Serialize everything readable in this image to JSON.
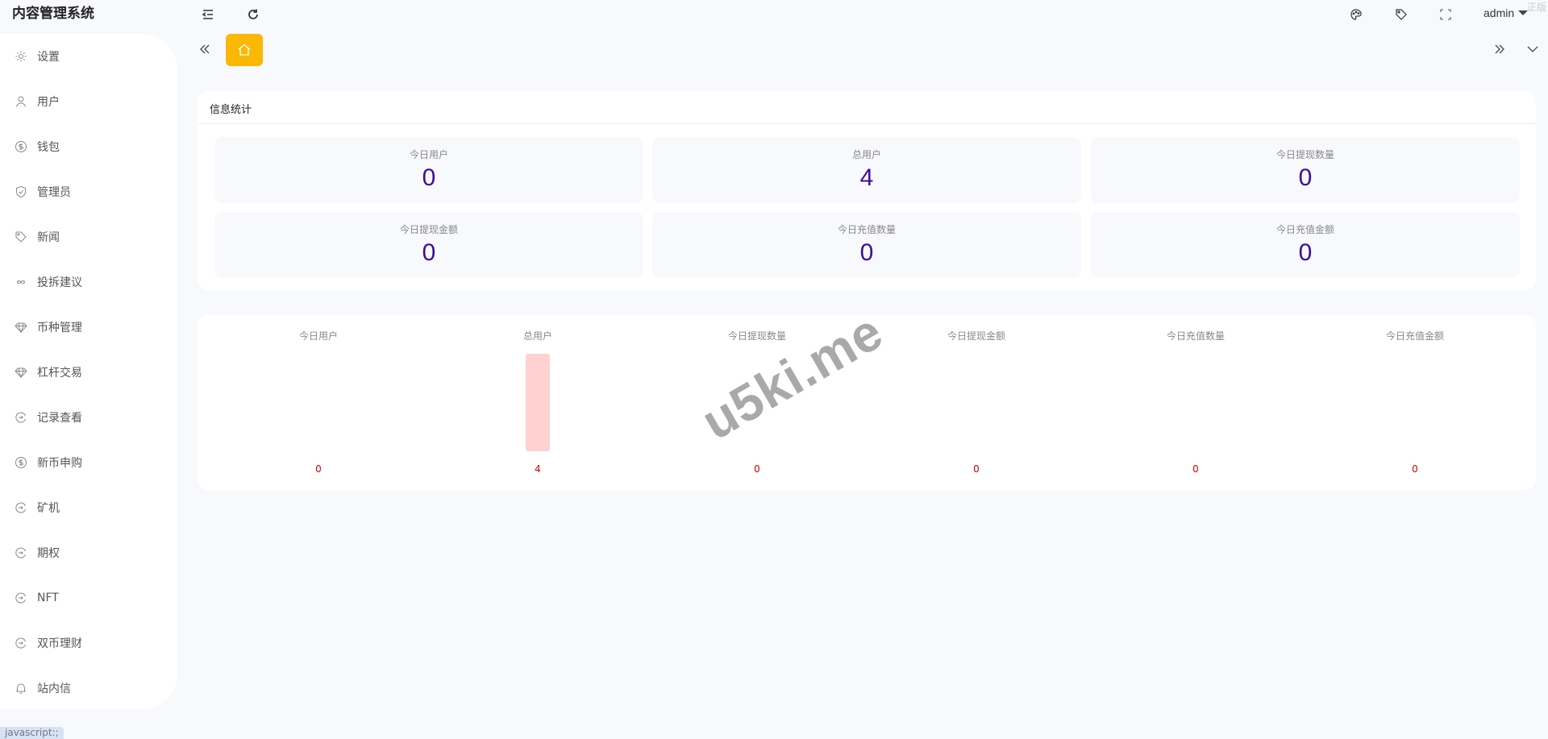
{
  "header": {
    "title": "内容管理系统",
    "user": "admin",
    "corner_text": "正版",
    "icons": [
      "menu-fold-icon",
      "refresh-icon",
      "palette-icon",
      "tag-icon",
      "fullscreen-icon"
    ]
  },
  "sidebar": {
    "items": [
      {
        "label": "设置",
        "icon": "gear-icon"
      },
      {
        "label": "用户",
        "icon": "user-icon"
      },
      {
        "label": "钱包",
        "icon": "dollar-icon"
      },
      {
        "label": "管理员",
        "icon": "shield-icon"
      },
      {
        "label": "新闻",
        "icon": "tag-icon"
      },
      {
        "label": "投拆建议",
        "icon": "infinity-icon"
      },
      {
        "label": "币种管理",
        "icon": "diamond-icon"
      },
      {
        "label": "杠杆交易",
        "icon": "diamond-icon"
      },
      {
        "label": "记录查看",
        "icon": "circle-arrow-icon"
      },
      {
        "label": "新币申购",
        "icon": "dollar-icon"
      },
      {
        "label": "矿机",
        "icon": "circle-arrow-icon"
      },
      {
        "label": "期权",
        "icon": "circle-arrow-icon"
      },
      {
        "label": "NFT",
        "icon": "circle-arrow-icon"
      },
      {
        "label": "双币理财",
        "icon": "circle-arrow-icon"
      },
      {
        "label": "站内信",
        "icon": "bell-icon"
      }
    ]
  },
  "tabs": {
    "home_color": "#fbb703"
  },
  "stats": {
    "title": "信息统计",
    "cards": [
      {
        "label": "今日用户",
        "value": "0"
      },
      {
        "label": "总用户",
        "value": "4"
      },
      {
        "label": "今日提现数量",
        "value": "0"
      },
      {
        "label": "今日提现金额",
        "value": "0"
      },
      {
        "label": "今日充值数量",
        "value": "0"
      },
      {
        "label": "今日充值金额",
        "value": "0"
      }
    ]
  },
  "chart_data": {
    "type": "bar",
    "categories": [
      "今日用户",
      "总用户",
      "今日提现数量",
      "今日提现金额",
      "今日充值数量",
      "今日充值金额"
    ],
    "values": [
      0,
      4,
      0,
      0,
      0,
      0
    ],
    "bar_color": "#ffd1d1",
    "label_color": "#cc0000"
  },
  "watermark": "u5ki.me",
  "status_bar": "javascript:;"
}
